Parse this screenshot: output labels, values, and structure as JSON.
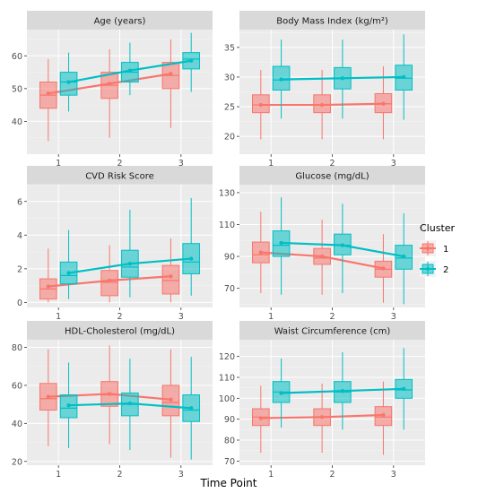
{
  "chart_data": {
    "type": "box",
    "x_title": "Time Point",
    "legend_title": "Cluster",
    "legend_position": "right",
    "x_categories": [
      "1",
      "2",
      "3"
    ],
    "clusters": [
      {
        "name": "1",
        "color": "#F8766D"
      },
      {
        "name": "2",
        "color": "#00BFC4"
      }
    ],
    "panels": [
      {
        "title": "Age (years)",
        "ylim": [
          30,
          68
        ],
        "yticks": [
          40,
          50,
          60
        ],
        "series": [
          {
            "cluster": "1",
            "boxes": [
              {
                "x": "1",
                "min": 34,
                "q1": 44,
                "median": 48,
                "q3": 52,
                "max": 59
              },
              {
                "x": "2",
                "min": 35,
                "q1": 47,
                "median": 51,
                "q3": 55,
                "max": 62
              },
              {
                "x": "3",
                "min": 38,
                "q1": 50,
                "median": 54,
                "q3": 58,
                "max": 65
              }
            ],
            "means": [
              48.5,
              51.5,
              54.5
            ]
          },
          {
            "cluster": "2",
            "boxes": [
              {
                "x": "1",
                "min": 43,
                "q1": 48,
                "median": 52,
                "q3": 55,
                "max": 61
              },
              {
                "x": "2",
                "min": 48,
                "q1": 52,
                "median": 55,
                "q3": 58,
                "max": 64
              },
              {
                "x": "3",
                "min": 49,
                "q1": 56,
                "median": 59,
                "q3": 61,
                "max": 67
              }
            ],
            "means": [
              52,
              55.5,
              58.5
            ]
          }
        ]
      },
      {
        "title": "Body Mass Index (kg/m²)",
        "ylim": [
          17,
          38
        ],
        "yticks": [
          20,
          25,
          30,
          35
        ],
        "series": [
          {
            "cluster": "1",
            "boxes": [
              {
                "x": "1",
                "min": 19.5,
                "q1": 24,
                "median": 25.3,
                "q3": 27,
                "max": 31.2
              },
              {
                "x": "2",
                "min": 19.5,
                "q1": 24,
                "median": 25.3,
                "q3": 27,
                "max": 31.2
              },
              {
                "x": "3",
                "min": 19.5,
                "q1": 24,
                "median": 25.5,
                "q3": 27.2,
                "max": 31.8
              }
            ],
            "means": [
              25.3,
              25.3,
              25.5
            ]
          },
          {
            "cluster": "2",
            "boxes": [
              {
                "x": "1",
                "min": 23,
                "q1": 27.8,
                "median": 29.5,
                "q3": 31.8,
                "max": 36.3
              },
              {
                "x": "2",
                "min": 23,
                "q1": 28,
                "median": 29.8,
                "q3": 31.6,
                "max": 36.3
              },
              {
                "x": "3",
                "min": 22.8,
                "q1": 27.8,
                "median": 29.8,
                "q3": 32,
                "max": 37.2
              }
            ],
            "means": [
              29.6,
              29.8,
              30
            ]
          }
        ]
      },
      {
        "title": "CVD Risk Score",
        "ylim": [
          -0.3,
          7
        ],
        "yticks": [
          0,
          2,
          4,
          6
        ],
        "series": [
          {
            "cluster": "1",
            "boxes": [
              {
                "x": "1",
                "min": 0,
                "q1": 0.2,
                "median": 0.8,
                "q3": 1.4,
                "max": 3.2
              },
              {
                "x": "2",
                "min": 0,
                "q1": 0.4,
                "median": 1.2,
                "q3": 1.9,
                "max": 3.4
              },
              {
                "x": "3",
                "min": 0,
                "q1": 0.5,
                "median": 1.3,
                "q3": 2.2,
                "max": 3.8
              }
            ],
            "means": [
              0.95,
              1.3,
              1.55
            ]
          },
          {
            "cluster": "2",
            "boxes": [
              {
                "x": "1",
                "min": 0.2,
                "q1": 1.1,
                "median": 1.6,
                "q3": 2.4,
                "max": 4.3
              },
              {
                "x": "2",
                "min": 0.3,
                "q1": 1.5,
                "median": 2.1,
                "q3": 3.1,
                "max": 5.5
              },
              {
                "x": "3",
                "min": 0.4,
                "q1": 1.7,
                "median": 2.4,
                "q3": 3.5,
                "max": 6.2
              }
            ],
            "means": [
              1.75,
              2.3,
              2.6
            ]
          }
        ]
      },
      {
        "title": "Glucose (mg/dL)",
        "ylim": [
          58,
          135
        ],
        "yticks": [
          70,
          90,
          110,
          130
        ],
        "series": [
          {
            "cluster": "1",
            "boxes": [
              {
                "x": "1",
                "min": 67,
                "q1": 86,
                "median": 91,
                "q3": 99,
                "max": 118
              },
              {
                "x": "2",
                "min": 66,
                "q1": 85,
                "median": 89,
                "q3": 95,
                "max": 113
              },
              {
                "x": "3",
                "min": 61,
                "q1": 77,
                "median": 82,
                "q3": 87,
                "max": 104
              }
            ],
            "means": [
              92.5,
              90,
              82.5
            ]
          },
          {
            "cluster": "2",
            "boxes": [
              {
                "x": "1",
                "min": 66,
                "q1": 90,
                "median": 97,
                "q3": 106,
                "max": 127
              },
              {
                "x": "2",
                "min": 67,
                "q1": 91,
                "median": 97,
                "q3": 104,
                "max": 123
              },
              {
                "x": "3",
                "min": 60,
                "q1": 82,
                "median": 89,
                "q3": 97,
                "max": 117
              }
            ],
            "means": [
              98.5,
              97,
              90
            ]
          }
        ]
      },
      {
        "title": "HDL-Cholesterol (mg/dL)",
        "ylim": [
          18,
          84
        ],
        "yticks": [
          20,
          40,
          60,
          80
        ],
        "series": [
          {
            "cluster": "1",
            "boxes": [
              {
                "x": "1",
                "min": 28,
                "q1": 47,
                "median": 53,
                "q3": 61,
                "max": 79
              },
              {
                "x": "2",
                "min": 29,
                "q1": 49,
                "median": 55,
                "q3": 62,
                "max": 81
              },
              {
                "x": "3",
                "min": 22,
                "q1": 44,
                "median": 51,
                "q3": 60,
                "max": 79
              }
            ],
            "means": [
              54,
              55.5,
              52.5
            ]
          },
          {
            "cluster": "2",
            "boxes": [
              {
                "x": "1",
                "min": 27,
                "q1": 43,
                "median": 48,
                "q3": 55,
                "max": 72
              },
              {
                "x": "2",
                "min": 26,
                "q1": 44,
                "median": 50,
                "q3": 56,
                "max": 74
              },
              {
                "x": "3",
                "min": 21,
                "q1": 41,
                "median": 47,
                "q3": 55,
                "max": 75
              }
            ],
            "means": [
              49.5,
              50.5,
              48
            ]
          }
        ]
      },
      {
        "title": "Waist Circumference (cm)",
        "ylim": [
          68,
          128
        ],
        "yticks": [
          70,
          80,
          90,
          100,
          110,
          120
        ],
        "series": [
          {
            "cluster": "1",
            "boxes": [
              {
                "x": "1",
                "min": 74,
                "q1": 87,
                "median": 91,
                "q3": 95,
                "max": 106
              },
              {
                "x": "2",
                "min": 74,
                "q1": 87,
                "median": 91,
                "q3": 95,
                "max": 107
              },
              {
                "x": "3",
                "min": 73,
                "q1": 87,
                "median": 91,
                "q3": 96,
                "max": 108
              }
            ],
            "means": [
              90.5,
              91,
              92
            ]
          },
          {
            "cluster": "2",
            "boxes": [
              {
                "x": "1",
                "min": 86,
                "q1": 98,
                "median": 103,
                "q3": 108,
                "max": 119
              },
              {
                "x": "2",
                "min": 85,
                "q1": 98,
                "median": 103,
                "q3": 108,
                "max": 122
              },
              {
                "x": "3",
                "min": 85,
                "q1": 100,
                "median": 104,
                "q3": 109,
                "max": 124
              }
            ],
            "means": [
              102.5,
              103.5,
              104.5
            ]
          }
        ]
      }
    ]
  }
}
